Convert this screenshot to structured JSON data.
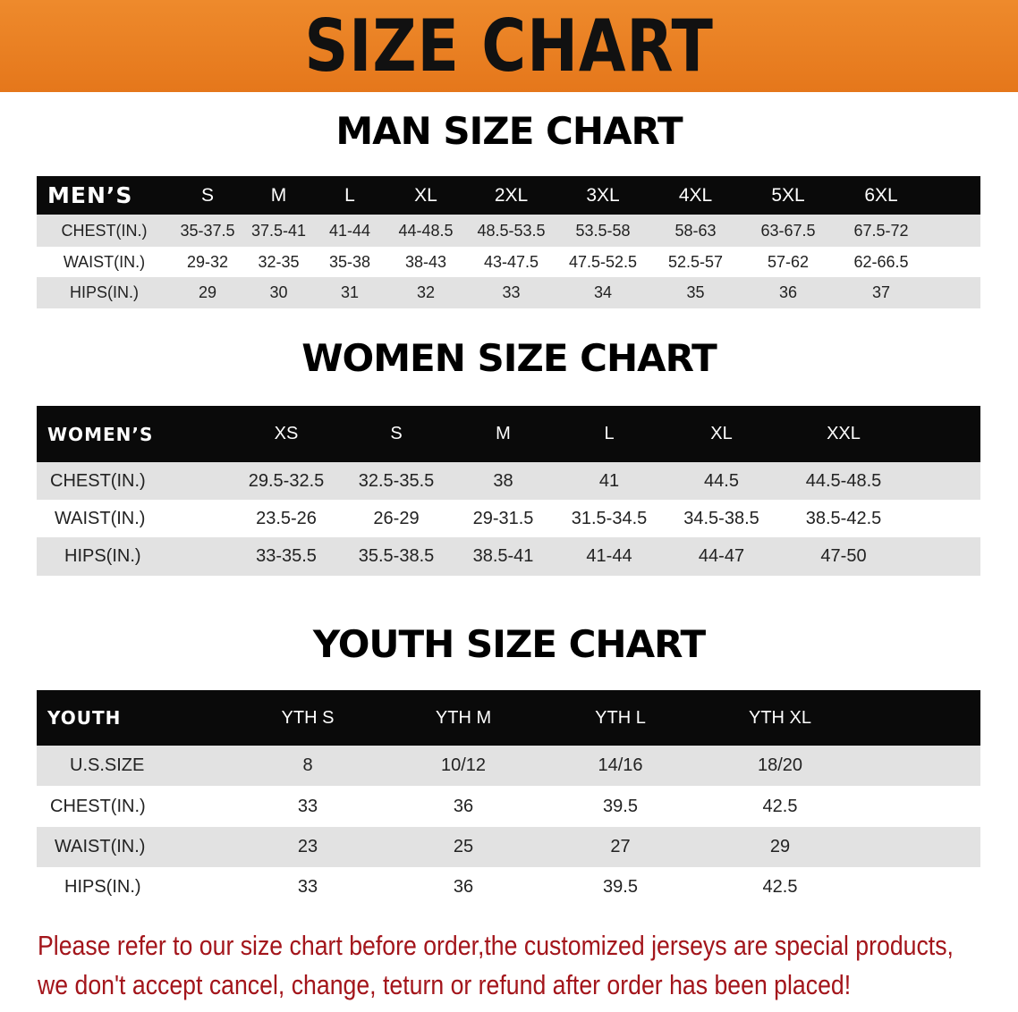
{
  "banner_title": "SIZE CHART",
  "colors": {
    "banner": "#e87e22",
    "header_row": "#0a0a0a",
    "stripe": "#e2e2e2",
    "note": "#a3151b"
  },
  "men": {
    "title": "MAN SIZE CHART",
    "header_label": "MEN’S",
    "sizes": [
      "S",
      "M",
      "L",
      "XL",
      "2XL",
      "3XL",
      "4XL",
      "5XL",
      "6XL"
    ],
    "rows": [
      {
        "label": "CHEST(IN.)",
        "values": [
          "35-37.5",
          "37.5-41",
          "41-44",
          "44-48.5",
          "48.5-53.5",
          "53.5-58",
          "58-63",
          "63-67.5",
          "67.5-72"
        ]
      },
      {
        "label": "WAIST(IN.)",
        "values": [
          "29-32",
          "32-35",
          "35-38",
          "38-43",
          "43-47.5",
          "47.5-52.5",
          "52.5-57",
          "57-62",
          "62-66.5"
        ]
      },
      {
        "label": "HIPS(IN.)",
        "values": [
          "29",
          "30",
          "31",
          "32",
          "33",
          "34",
          "35",
          "36",
          "37"
        ]
      }
    ]
  },
  "women": {
    "title": "WOMEN SIZE CHART",
    "header_label": "WOMEN’S",
    "sizes": [
      "XS",
      "S",
      "M",
      "L",
      "XL",
      "XXL"
    ],
    "rows": [
      {
        "label": "CHEST(IN.)",
        "values": [
          "29.5-32.5",
          "32.5-35.5",
          "38",
          "41",
          "44.5",
          "44.5-48.5"
        ]
      },
      {
        "label": "WAIST(IN.)",
        "values": [
          "23.5-26",
          "26-29",
          "29-31.5",
          "31.5-34.5",
          "34.5-38.5",
          "38.5-42.5"
        ]
      },
      {
        "label": "HIPS(IN.)",
        "values": [
          "33-35.5",
          "35.5-38.5",
          "38.5-41",
          "41-44",
          "44-47",
          "47-50"
        ]
      }
    ]
  },
  "youth": {
    "title": "YOUTH SIZE CHART",
    "header_label": "YOUTH",
    "sizes": [
      "YTH S",
      "YTH M",
      "YTH L",
      "YTH XL"
    ],
    "rows": [
      {
        "label": "U.S.SIZE",
        "values": [
          "8",
          "10/12",
          "14/16",
          "18/20"
        ]
      },
      {
        "label": "CHEST(IN.)",
        "values": [
          "33",
          "36",
          "39.5",
          "42.5"
        ]
      },
      {
        "label": "WAIST(IN.)",
        "values": [
          "23",
          "25",
          "27",
          "29"
        ]
      },
      {
        "label": "HIPS(IN.)",
        "values": [
          "33",
          "36",
          "39.5",
          "42.5"
        ]
      }
    ]
  },
  "note": {
    "line1": "Please refer to our size chart before order,the customized jerseys are special products,",
    "line2": "we don't accept cancel, change, teturn or refund after order has been placed!"
  }
}
